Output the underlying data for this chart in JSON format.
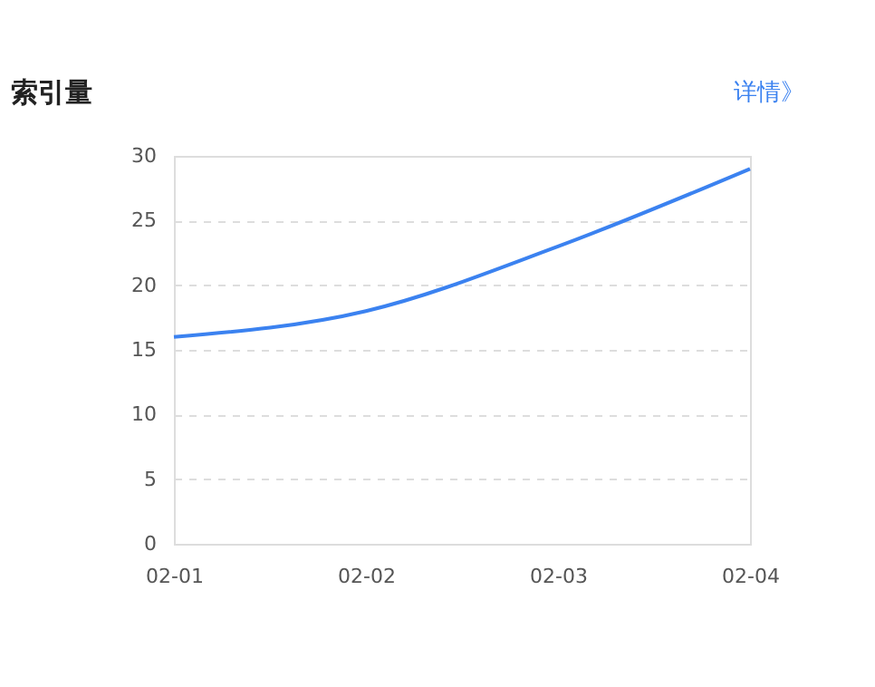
{
  "chart_data": {
    "type": "line",
    "title": "索引量",
    "annotations": [
      "详情》"
    ],
    "categories": [
      "02-01",
      "02-02",
      "02-03",
      "02-04"
    ],
    "series": [
      {
        "color": "#3b82f0",
        "values": [
          16,
          18,
          23,
          29
        ]
      }
    ],
    "ylim": [
      0,
      30
    ],
    "yticks": [
      0,
      5,
      10,
      15,
      20,
      25,
      30
    ],
    "grid": "y",
    "legend": false,
    "marker": "none",
    "line_style": "solid"
  }
}
